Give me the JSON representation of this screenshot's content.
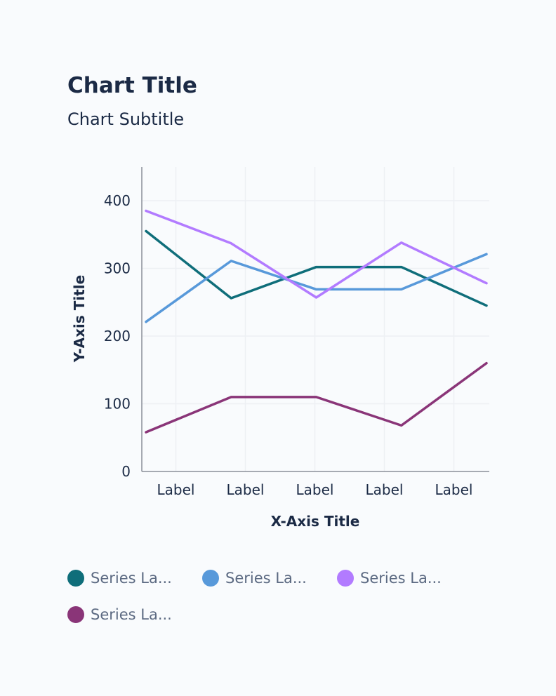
{
  "title": "Chart Title",
  "subtitle": "Chart Subtitle",
  "chart_data": {
    "type": "line",
    "title": "Chart Title",
    "subtitle": "Chart Subtitle",
    "xlabel": "X-Axis Title",
    "ylabel": "Y-Axis Title",
    "categories": [
      "Label",
      "Label",
      "Label",
      "Label",
      "Label"
    ],
    "ylim": [
      0,
      450
    ],
    "yticks": [
      0,
      100,
      200,
      300,
      400
    ],
    "grid": true,
    "legend_position": "bottom",
    "series": [
      {
        "name": "Series La...",
        "color": "#0f6e7a",
        "values": [
          355,
          256,
          302,
          302,
          245
        ]
      },
      {
        "name": "Series La...",
        "color": "#5899da",
        "values": [
          221,
          311,
          269,
          269,
          321
        ]
      },
      {
        "name": "Series La...",
        "color": "#b27bff",
        "values": [
          385,
          337,
          257,
          338,
          278
        ]
      },
      {
        "name": "Series La...",
        "color": "#8a3578",
        "values": [
          58,
          110,
          110,
          68,
          160
        ]
      }
    ]
  }
}
